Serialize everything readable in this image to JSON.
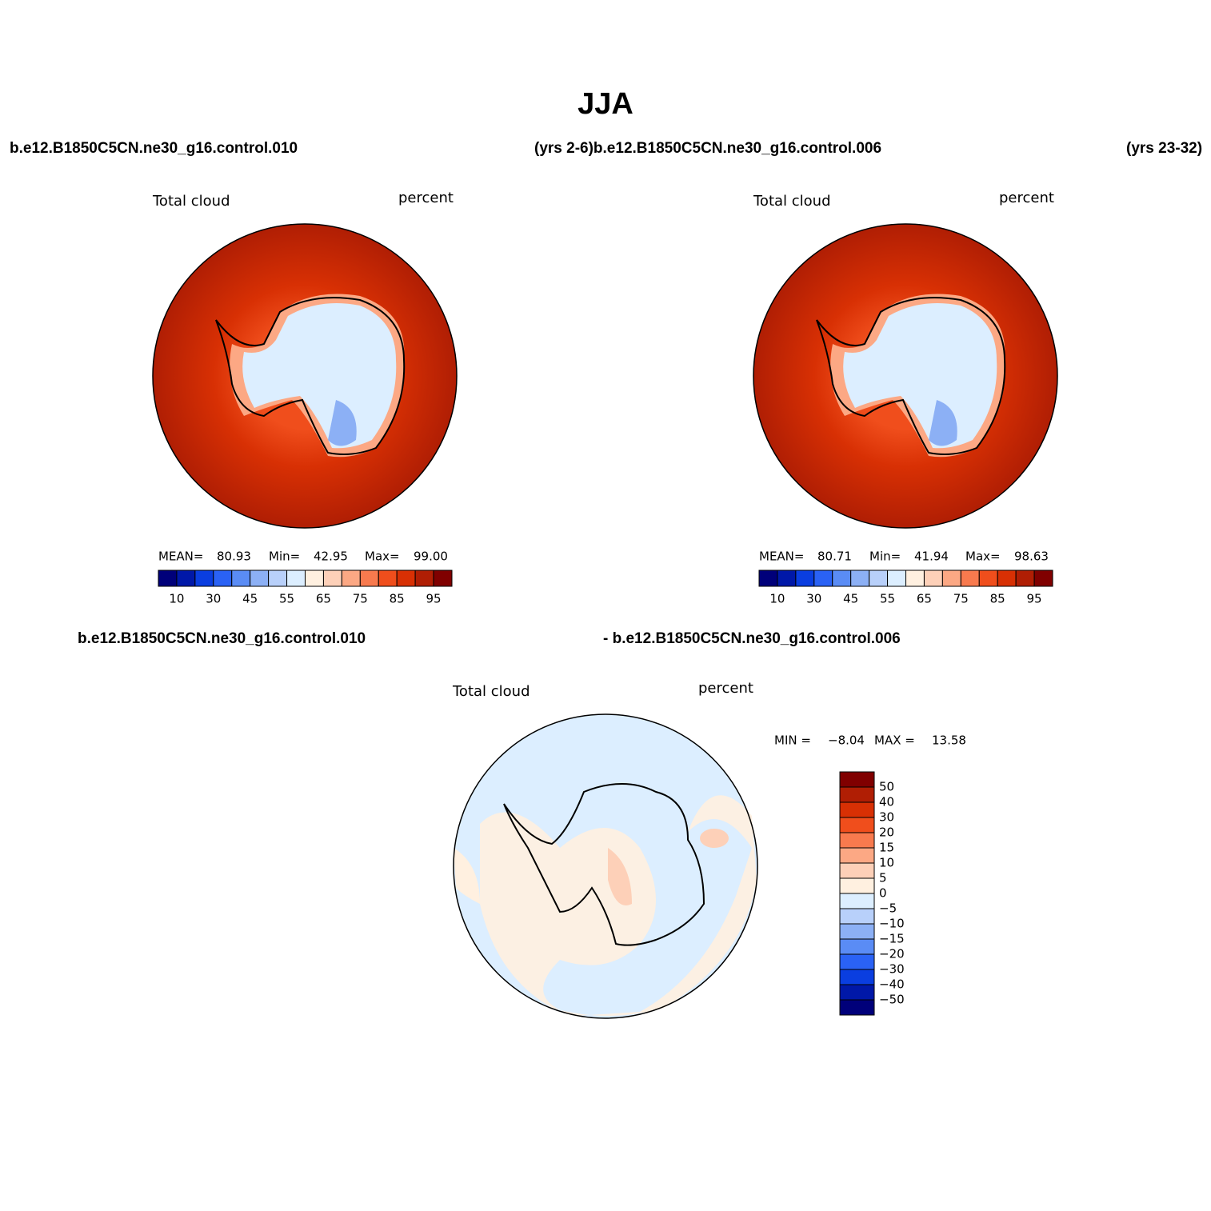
{
  "title": "JJA",
  "header": {
    "left": "b.e12.B1850C5CN.ne30_g16.control.010",
    "middle": "(yrs 2-6)b.e12.B1850C5CN.ne30_g16.control.006",
    "right": "(yrs 23-32)"
  },
  "palette": [
    "#00007a",
    "#0018a8",
    "#0a3ee0",
    "#2a62f5",
    "#5a8cf5",
    "#8cb0f5",
    "#b8d0fa",
    "#dceeff",
    "#fff0e0",
    "#fdd0b8",
    "#fca884",
    "#f87a4e",
    "#f04e1c",
    "#d83004",
    "#b01e04",
    "#800000"
  ],
  "panels": [
    {
      "variable": "Total cloud",
      "units": "percent",
      "stats": [
        {
          "label": "MEAN=",
          "value": "80.93"
        },
        {
          "label": "Min=",
          "value": "42.95"
        },
        {
          "label": "Max=",
          "value": "99.00"
        }
      ],
      "colorbar_labels": [
        "10",
        "30",
        "45",
        "55",
        "65",
        "75",
        "85",
        "95"
      ]
    },
    {
      "variable": "Total cloud",
      "units": "percent",
      "stats": [
        {
          "label": "MEAN=",
          "value": "80.71"
        },
        {
          "label": "Min=",
          "value": "41.94"
        },
        {
          "label": "Max=",
          "value": "98.63"
        }
      ],
      "colorbar_labels": [
        "10",
        "30",
        "45",
        "55",
        "65",
        "75",
        "85",
        "95"
      ]
    }
  ],
  "difference": {
    "header_left": "b.e12.B1850C5CN.ne30_g16.control.010",
    "header_right": "- b.e12.B1850C5CN.ne30_g16.control.006",
    "variable": "Total cloud",
    "units": "percent",
    "stats": [
      {
        "label": "MIN =",
        "value": "−8.04"
      },
      {
        "label": "MAX =",
        "value": "13.58"
      }
    ],
    "colorbar_labels": [
      "50",
      "40",
      "30",
      "20",
      "15",
      "10",
      "5",
      "0",
      "−5",
      "−10",
      "−15",
      "−20",
      "−30",
      "−40",
      "−50"
    ]
  }
}
